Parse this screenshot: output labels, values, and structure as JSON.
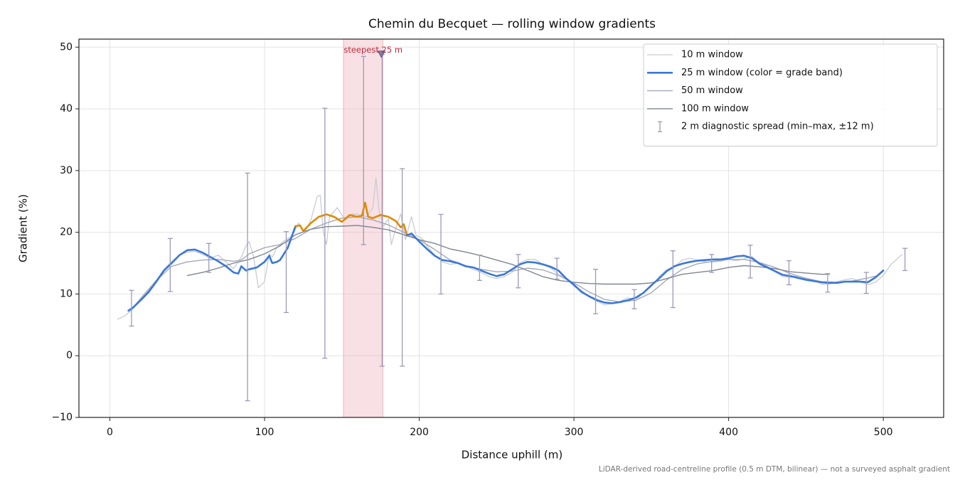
{
  "chart_data": {
    "type": "line",
    "title": "Chemin du Becquet — rolling window gradients",
    "x_label": "Distance uphill (m)",
    "y_label": "Gradient (%)",
    "footnote": "LiDAR-derived road-centreline profile (0.5 m DTM, bilinear) — not a surveyed asphalt gradient",
    "xlim": [
      -20,
      539
    ],
    "ylim": [
      -10,
      51.3
    ],
    "xticks": [
      0,
      100,
      200,
      300,
      400,
      500
    ],
    "yticks": [
      {
        "value": -10,
        "label": "−10"
      },
      0,
      10,
      20,
      30,
      40,
      50
    ],
    "grid": true,
    "legend": "upper right",
    "series": [
      {
        "name": "10 m window",
        "color": "#c8ccd4",
        "width": 1.3,
        "x": [
          5,
          10,
          15,
          20,
          25,
          30,
          35,
          40,
          45,
          50,
          55,
          60,
          65,
          70,
          75,
          80,
          85,
          88,
          90,
          93,
          96,
          100,
          103,
          105,
          108,
          112,
          118,
          122,
          126,
          130,
          134,
          136,
          138,
          140,
          142,
          147,
          152,
          157,
          162,
          166,
          170,
          172,
          174,
          177,
          180,
          182,
          185,
          188,
          191,
          195,
          198,
          202,
          205,
          210,
          215,
          220,
          225,
          230,
          235,
          240,
          245,
          250,
          255,
          260,
          265,
          270,
          275,
          280,
          285,
          290,
          295,
          300,
          305,
          310,
          315,
          320,
          325,
          330,
          335,
          340,
          345,
          350,
          355,
          360,
          365,
          370,
          375,
          380,
          385,
          390,
          395,
          400,
          405,
          410,
          415,
          420,
          425,
          430,
          435,
          440,
          445,
          450,
          455,
          460,
          465,
          470,
          475,
          480,
          485,
          490,
          495,
          500,
          505,
          512
        ],
        "values": [
          5.9,
          6.5,
          7.6,
          9.3,
          10.5,
          12.2,
          14,
          15.3,
          16.3,
          16.8,
          16.9,
          16.4,
          15.8,
          16.3,
          15.2,
          14.1,
          16,
          17.8,
          18.5,
          16,
          11,
          12,
          16.5,
          16,
          17.5,
          18.5,
          19.5,
          21.5,
          20,
          22,
          25.8,
          26,
          20,
          18,
          22.5,
          24,
          22,
          23,
          22.8,
          22.5,
          24,
          28.8,
          23.5,
          21,
          22.2,
          18,
          20.8,
          23,
          18.8,
          22.5,
          19.5,
          19,
          17.8,
          16.3,
          15.2,
          14.8,
          15,
          14.5,
          14,
          13.5,
          12.8,
          12.5,
          12.8,
          13.5,
          15,
          15.6,
          15.6,
          14.8,
          14.2,
          13.2,
          12.6,
          11.2,
          10.6,
          9.5,
          8.8,
          8.2,
          8.5,
          8.8,
          9.4,
          8.9,
          10.3,
          11.2,
          12.8,
          14,
          14.4,
          15.5,
          15.8,
          15.5,
          15.2,
          15.2,
          15.3,
          15.6,
          15.4,
          15.7,
          16.1,
          15,
          14.5,
          13.6,
          12.8,
          12.7,
          12.9,
          12.6,
          12.3,
          11.6,
          11.6,
          12,
          12.3,
          12.5,
          12,
          11.5,
          11.9,
          13,
          14.8,
          16.4
        ]
      },
      {
        "name": "25 m window (color = grade band)",
        "color": "#3a78d8",
        "width": 2.6,
        "grade_bands": [
          {
            "min": 20,
            "color": "#e08a00"
          }
        ],
        "x": [
          12,
          15,
          20,
          25,
          30,
          35,
          40,
          45,
          50,
          55,
          60,
          65,
          70,
          75,
          80,
          83,
          85,
          88,
          90,
          95,
          100,
          103,
          105,
          108,
          110,
          115,
          118,
          120,
          123,
          125,
          130,
          135,
          140,
          145,
          150,
          155,
          160,
          163,
          165,
          167,
          170,
          175,
          180,
          185,
          188,
          190,
          192,
          195,
          200,
          205,
          210,
          215,
          220,
          225,
          230,
          235,
          240,
          245,
          250,
          255,
          260,
          265,
          270,
          275,
          280,
          285,
          290,
          295,
          300,
          305,
          310,
          315,
          320,
          325,
          330,
          335,
          340,
          345,
          350,
          355,
          360,
          365,
          370,
          375,
          380,
          385,
          390,
          395,
          400,
          405,
          410,
          415,
          420,
          425,
          430,
          435,
          440,
          445,
          450,
          455,
          460,
          465,
          470,
          475,
          480,
          485,
          490,
          495,
          500
        ],
        "values": [
          7.3,
          7.8,
          9,
          10.3,
          12,
          13.8,
          15,
          16.3,
          17.1,
          17.2,
          16.7,
          16,
          15.3,
          14.5,
          13.5,
          13.3,
          14.5,
          13.8,
          14,
          14.3,
          15.2,
          16.2,
          15,
          15.2,
          15.5,
          17.5,
          19.6,
          21,
          21.1,
          20.2,
          21.5,
          22.5,
          22.9,
          22.5,
          21.7,
          22.8,
          22.5,
          22.7,
          24.8,
          22.5,
          22.3,
          22.8,
          22.5,
          21.8,
          20.8,
          21.3,
          19.5,
          19.8,
          18.5,
          17.3,
          16.2,
          15.5,
          15.3,
          15,
          14.5,
          14.3,
          13.8,
          13.3,
          12.9,
          13.2,
          14,
          14.8,
          15.2,
          15.1,
          14.8,
          14.4,
          13.8,
          12.5,
          11.5,
          10.3,
          9.6,
          9,
          8.6,
          8.5,
          8.7,
          9,
          9.4,
          10.2,
          11.4,
          12.5,
          13.7,
          14.5,
          14.9,
          15.2,
          15.4,
          15.5,
          15.6,
          15.6,
          15.8,
          16.1,
          16.2,
          15.8,
          14.9,
          14.3,
          13.7,
          13.1,
          12.9,
          12.6,
          12.3,
          12.1,
          11.9,
          11.8,
          11.8,
          12,
          12,
          12,
          11.9,
          12.7,
          13.8
        ]
      },
      {
        "name": "50 m window",
        "color": "#a2a9b8",
        "width": 1.4,
        "x": [
          14,
          20,
          30,
          40,
          50,
          60,
          70,
          80,
          85,
          90,
          100,
          110,
          120,
          130,
          140,
          150,
          160,
          170,
          180,
          190,
          200,
          210,
          220,
          230,
          240,
          250,
          260,
          270,
          280,
          290,
          300,
          310,
          320,
          330,
          340,
          350,
          360,
          370,
          380,
          390,
          400,
          410,
          420,
          430,
          440,
          450,
          460,
          470,
          480,
          490,
          495
        ],
        "values": [
          7.5,
          9.3,
          12.2,
          14.5,
          15.2,
          15.5,
          15.6,
          15.3,
          15.5,
          16.5,
          17.5,
          18,
          19,
          20.5,
          21.5,
          22.3,
          22.5,
          22,
          21.2,
          20,
          18.8,
          17.2,
          15.5,
          14.6,
          14,
          13.6,
          13.7,
          14.2,
          13.9,
          13,
          11.8,
          10.3,
          9.1,
          8.7,
          9,
          10.2,
          12.3,
          14,
          14.9,
          15.3,
          15.6,
          15.6,
          15.1,
          14.3,
          13.3,
          12.5,
          12,
          11.9,
          12.1,
          12.6,
          12.9
        ]
      },
      {
        "name": "100 m window",
        "color": "#7f8591",
        "width": 1.4,
        "x": [
          50,
          60,
          70,
          80,
          90,
          100,
          110,
          120,
          130,
          140,
          150,
          160,
          170,
          180,
          190,
          200,
          210,
          220,
          230,
          240,
          250,
          260,
          270,
          280,
          290,
          300,
          310,
          320,
          330,
          340,
          350,
          360,
          370,
          380,
          390,
          400,
          410,
          420,
          430,
          440,
          450,
          460,
          465
        ],
        "values": [
          13,
          13.5,
          14.2,
          15,
          15.6,
          16.5,
          17.8,
          19.6,
          20.5,
          20.9,
          21,
          21.1,
          20.8,
          20.4,
          19.6,
          18.8,
          18.2,
          17.3,
          16.8,
          16.2,
          15.5,
          14.8,
          13.8,
          12.8,
          12.2,
          11.9,
          11.7,
          11.6,
          11.6,
          11.6,
          11.8,
          12.5,
          13.2,
          13.5,
          13.8,
          14.3,
          14.6,
          14.4,
          14.1,
          13.6,
          13.4,
          13.2,
          13.2
        ]
      }
    ],
    "spread": {
      "name": "2 m diagnostic spread (min–max, ±12 m)",
      "color": "#9a9abb",
      "x": [
        14,
        39,
        64,
        89,
        114,
        139,
        164,
        176,
        189,
        214,
        239,
        264,
        289,
        314,
        339,
        364,
        389,
        414,
        439,
        464,
        489,
        514
      ],
      "low": [
        4.8,
        10.4,
        13.5,
        -7.3,
        7,
        -0.4,
        18,
        -1.7,
        -1.7,
        10,
        12.2,
        11,
        12.4,
        6.8,
        7.6,
        7.8,
        13.5,
        12.6,
        11.5,
        10.3,
        10.1,
        13.8
      ],
      "high": [
        10.6,
        19,
        18.2,
        29.6,
        20.1,
        40.1,
        48.5,
        48.8,
        30.3,
        22.9,
        16.3,
        16.4,
        15.8,
        14,
        10.7,
        17,
        16.4,
        17.9,
        15.4,
        13.3,
        13.5,
        17.4
      ]
    },
    "highlight": {
      "label": "steepest 25 m",
      "x0": 151,
      "x1": 176.5,
      "color": "#e8a0aa",
      "marker_x": 175.5,
      "marker_y": 48.8
    }
  }
}
